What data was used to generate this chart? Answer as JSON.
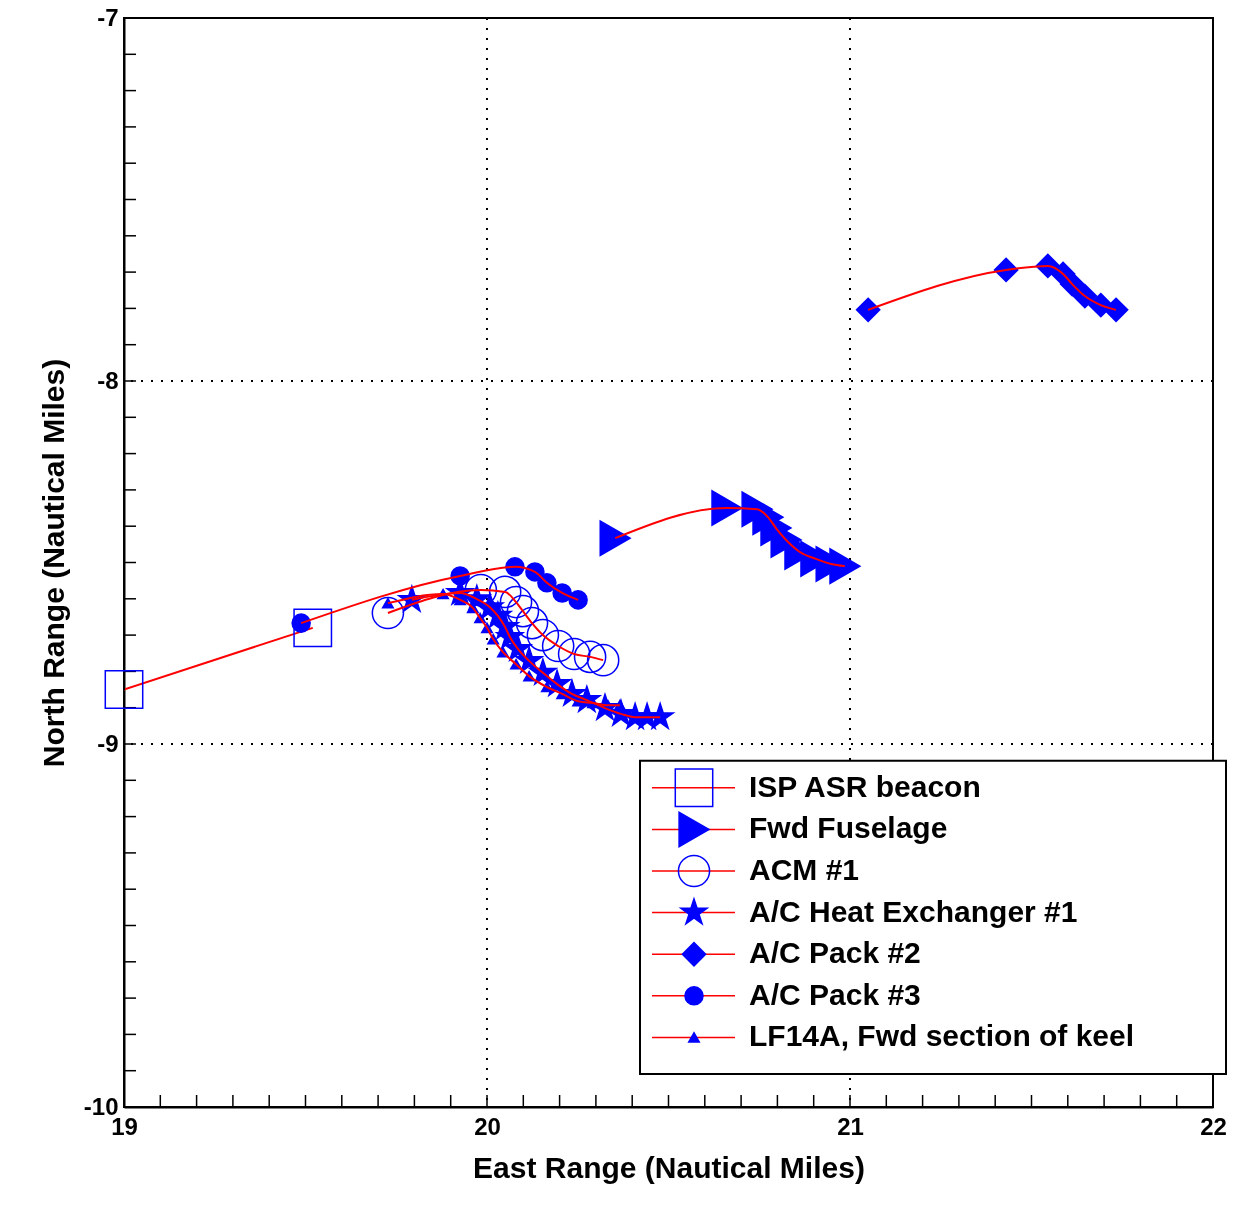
{
  "chart_data": {
    "type": "line",
    "xlabel": "East Range (Nautical Miles)",
    "ylabel": "North Range (Nautical Miles)",
    "xlim": [
      19,
      22
    ],
    "ylim": [
      -10,
      -7
    ],
    "grid": true,
    "legend": "bottom right",
    "xticks": [
      19,
      {
        "value": 19.1,
        "label": null
      },
      {
        "value": 19.2,
        "label": null
      },
      {
        "value": 19.3,
        "label": null
      },
      {
        "value": 19.4,
        "label": null
      },
      {
        "value": 19.5,
        "label": null
      },
      {
        "value": 19.6,
        "label": null
      },
      {
        "value": 19.7,
        "label": null
      },
      {
        "value": 19.8,
        "label": null
      },
      {
        "value": 19.9,
        "label": null
      },
      20,
      {
        "value": 20.1,
        "label": null
      },
      {
        "value": 20.2,
        "label": null
      },
      {
        "value": 20.3,
        "label": null
      },
      {
        "value": 20.4,
        "label": null
      },
      {
        "value": 20.5,
        "label": null
      },
      {
        "value": 20.6,
        "label": null
      },
      {
        "value": 20.7,
        "label": null
      },
      {
        "value": 20.8,
        "label": null
      },
      {
        "value": 20.9,
        "label": null
      },
      21,
      {
        "value": 21.1,
        "label": null
      },
      {
        "value": 21.2,
        "label": null
      },
      {
        "value": 21.3,
        "label": null
      },
      {
        "value": 21.4,
        "label": null
      },
      {
        "value": 21.5,
        "label": null
      },
      {
        "value": 21.6,
        "label": null
      },
      {
        "value": 21.7,
        "label": null
      },
      {
        "value": 21.8,
        "label": null
      },
      {
        "value": 21.9,
        "label": null
      },
      22
    ],
    "yticks": [
      -10,
      {
        "value": -9.9,
        "label": null
      },
      {
        "value": -9.8,
        "label": null
      },
      {
        "value": -9.7,
        "label": null
      },
      {
        "value": -9.6,
        "label": null
      },
      {
        "value": -9.5,
        "label": null
      },
      {
        "value": -9.4,
        "label": null
      },
      {
        "value": -9.3,
        "label": null
      },
      {
        "value": -9.2,
        "label": null
      },
      {
        "value": -9.1,
        "label": null
      },
      -9,
      {
        "value": -8.9,
        "label": null
      },
      {
        "value": -8.8,
        "label": null
      },
      {
        "value": -8.7,
        "label": null
      },
      {
        "value": -8.6,
        "label": null
      },
      {
        "value": -8.5,
        "label": null
      },
      {
        "value": -8.4,
        "label": null
      },
      {
        "value": -8.3,
        "label": null
      },
      {
        "value": -8.2,
        "label": null
      },
      {
        "value": -8.1,
        "label": null
      },
      -8,
      {
        "value": -7.9,
        "label": null
      },
      {
        "value": -7.8,
        "label": null
      },
      {
        "value": -7.7,
        "label": null
      },
      {
        "value": -7.6,
        "label": null
      },
      {
        "value": -7.5,
        "label": null
      },
      {
        "value": -7.4,
        "label": null
      },
      {
        "value": -7.3,
        "label": null
      },
      {
        "value": -7.2,
        "label": null
      },
      {
        "value": -7.1,
        "label": null
      },
      -7
    ],
    "series": [
      {
        "name": "ISP ASR beacon",
        "color": "#0000ff",
        "marker": "square",
        "x": [
          19.0,
          19.52
        ],
        "values": [
          -8.85,
          -8.68
        ]
      },
      {
        "name": "Fwd Fuselage",
        "color": "#0000ff",
        "marker": "triangle-right",
        "x": [
          20.353,
          20.661,
          20.744,
          20.774,
          20.796,
          20.824,
          20.862,
          20.906,
          20.948,
          20.986
        ],
        "values": [
          -8.433,
          -8.35,
          -8.353,
          -8.375,
          -8.405,
          -8.438,
          -8.471,
          -8.49,
          -8.504,
          -8.51
        ]
      },
      {
        "name": "ACM #1",
        "color": "#0000ff",
        "marker": "circle_open",
        "x": [
          19.727,
          19.983,
          20.05,
          20.08,
          20.099,
          20.124,
          20.154,
          20.196,
          20.24,
          20.284,
          20.32
        ],
        "values": [
          -8.639,
          -8.576,
          -8.581,
          -8.609,
          -8.634,
          -8.667,
          -8.7,
          -8.73,
          -8.752,
          -8.76,
          -8.769
        ]
      },
      {
        "name": "A/C Heat Exchanger #1",
        "color": "#0000ff",
        "marker": "star",
        "x": [
          19.793,
          19.926,
          19.972,
          20.008,
          20.03,
          20.05,
          20.063,
          20.085,
          20.116,
          20.154,
          20.193,
          20.234,
          20.275,
          20.325,
          20.369,
          20.408,
          20.441,
          20.477
        ],
        "values": [
          -8.603,
          -8.584,
          -8.601,
          -8.623,
          -8.647,
          -8.678,
          -8.705,
          -8.738,
          -8.771,
          -8.804,
          -8.835,
          -8.862,
          -8.879,
          -8.901,
          -8.917,
          -8.926,
          -8.926,
          -8.926
        ]
      },
      {
        "name": "A/C Pack #2",
        "color": "#0000ff",
        "marker": "diamond",
        "x": [
          21.05,
          21.43,
          21.545,
          21.587,
          21.612,
          21.647,
          21.691,
          21.733
        ],
        "values": [
          -7.804,
          -7.694,
          -7.683,
          -7.705,
          -7.733,
          -7.766,
          -7.791,
          -7.804
        ]
      },
      {
        "name": "A/C Pack #3",
        "color": "#0000ff",
        "marker": "circle",
        "x": [
          19.488,
          19.926,
          20.077,
          20.132,
          20.165,
          20.207,
          20.251
        ],
        "values": [
          -8.667,
          -8.537,
          -8.512,
          -8.526,
          -8.556,
          -8.584,
          -8.603
        ]
      },
      {
        "name": "LF14A, Fwd section of keel",
        "color": "#0000ff",
        "marker": "triangle",
        "x": [
          19.727,
          19.879,
          19.926,
          19.961,
          19.981,
          20.0,
          20.017,
          20.044,
          20.08,
          20.116,
          20.165,
          20.207,
          20.251,
          20.292,
          20.333,
          20.366
        ],
        "values": [
          -8.612,
          -8.587,
          -8.603,
          -8.625,
          -8.653,
          -8.68,
          -8.711,
          -8.747,
          -8.78,
          -8.813,
          -8.843,
          -8.862,
          -8.882,
          -8.887,
          -8.893,
          -8.893
        ]
      }
    ]
  }
}
